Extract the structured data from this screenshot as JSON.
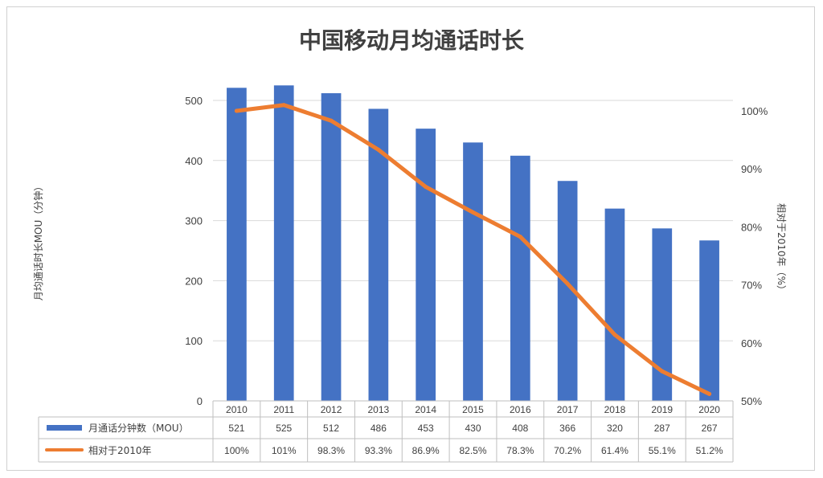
{
  "chart_data": {
    "type": "bar",
    "title": "中国移动月均通话时长",
    "categories": [
      "2010",
      "2011",
      "2012",
      "2013",
      "2014",
      "2015",
      "2016",
      "2017",
      "2018",
      "2019",
      "2020"
    ],
    "series": [
      {
        "name": "月通话分钟数（MOU）",
        "type": "bar",
        "axis": "left",
        "color": "#4472C4",
        "values": [
          521,
          525,
          512,
          486,
          453,
          430,
          408,
          366,
          320,
          287,
          267
        ],
        "labels": [
          "521",
          "525",
          "512",
          "486",
          "453",
          "430",
          "408",
          "366",
          "320",
          "287",
          "267"
        ]
      },
      {
        "name": "相对于2010年",
        "type": "line",
        "axis": "right",
        "color": "#ED7D31",
        "values": [
          100,
          101,
          98.3,
          93.3,
          86.9,
          82.5,
          78.3,
          70.2,
          61.4,
          55.1,
          51.2
        ],
        "labels": [
          "100%",
          "101%",
          "98.3%",
          "93.3%",
          "86.9%",
          "82.5%",
          "78.3%",
          "70.2%",
          "61.4%",
          "55.1%",
          "51.2%"
        ]
      }
    ],
    "ylabel": "月均通话时长MOU（分钟）",
    "y2label": "相对于2010年（%）",
    "ylim": [
      0,
      500
    ],
    "yticks": [
      "0",
      "100",
      "200",
      "300",
      "400",
      "500"
    ],
    "y2lim": [
      50,
      100
    ],
    "y2ticks": [
      "50%",
      "60%",
      "70%",
      "80%",
      "90%",
      "100%"
    ],
    "grid": true,
    "legend": "data-table"
  }
}
